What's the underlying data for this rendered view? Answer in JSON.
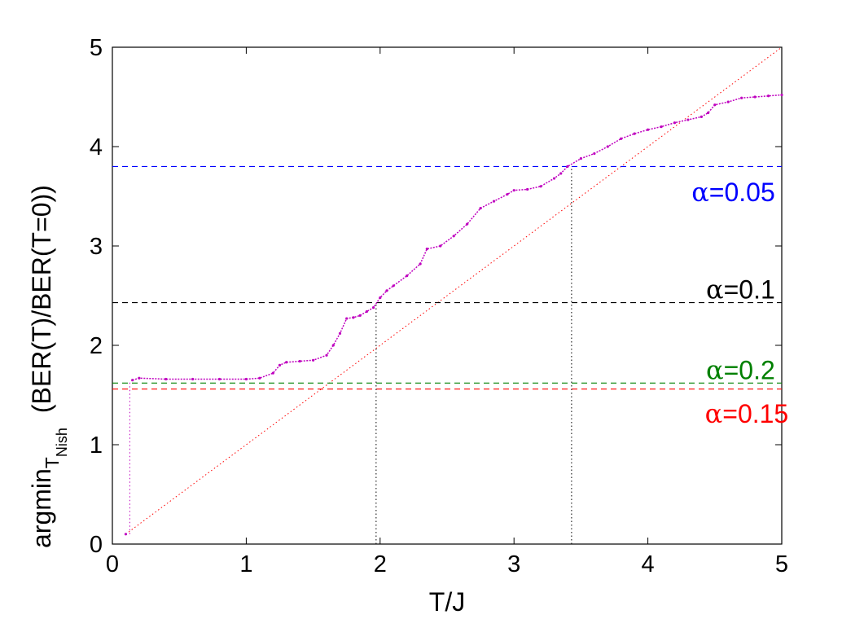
{
  "chart_data": {
    "type": "line",
    "title": "",
    "xlabel": "T/J",
    "ylabel_main": "argmin",
    "ylabel_sub1": "T",
    "ylabel_sub2": "Nish",
    "ylabel_rest": "(BER(T)/BER(T=0))",
    "xlim": [
      0,
      5
    ],
    "ylim": [
      0,
      5
    ],
    "xticks": [
      0,
      1,
      2,
      3,
      4,
      5
    ],
    "yticks": [
      0,
      1,
      2,
      3,
      4,
      5
    ],
    "xtick_labels": [
      "0",
      "1",
      "2",
      "3",
      "4",
      "5"
    ],
    "ytick_labels": [
      "0",
      "1",
      "2",
      "3",
      "4",
      "5"
    ],
    "grid": false,
    "colors": {
      "curve": "#bf00bf",
      "diagonal": "#ff0000",
      "alpha_005": "#0000ff",
      "alpha_01": "#000000",
      "alpha_02": "#008000",
      "alpha_015": "#ff0000",
      "vertical": "#000000"
    },
    "curve_points": [
      [
        0.1,
        0.1
      ],
      [
        0.15,
        1.65
      ],
      [
        0.2,
        1.67
      ],
      [
        0.4,
        1.66
      ],
      [
        0.6,
        1.66
      ],
      [
        0.8,
        1.66
      ],
      [
        1.0,
        1.66
      ],
      [
        1.1,
        1.67
      ],
      [
        1.2,
        1.72
      ],
      [
        1.25,
        1.8
      ],
      [
        1.3,
        1.83
      ],
      [
        1.4,
        1.84
      ],
      [
        1.5,
        1.85
      ],
      [
        1.6,
        1.9
      ],
      [
        1.65,
        2.0
      ],
      [
        1.7,
        2.12
      ],
      [
        1.75,
        2.27
      ],
      [
        1.8,
        2.28
      ],
      [
        1.85,
        2.3
      ],
      [
        1.9,
        2.34
      ],
      [
        1.95,
        2.38
      ],
      [
        2.0,
        2.48
      ],
      [
        2.05,
        2.55
      ],
      [
        2.1,
        2.6
      ],
      [
        2.2,
        2.7
      ],
      [
        2.3,
        2.82
      ],
      [
        2.35,
        2.97
      ],
      [
        2.45,
        3.0
      ],
      [
        2.55,
        3.1
      ],
      [
        2.65,
        3.22
      ],
      [
        2.75,
        3.38
      ],
      [
        2.85,
        3.45
      ],
      [
        2.95,
        3.52
      ],
      [
        3.0,
        3.56
      ],
      [
        3.1,
        3.57
      ],
      [
        3.2,
        3.6
      ],
      [
        3.3,
        3.68
      ],
      [
        3.35,
        3.73
      ],
      [
        3.4,
        3.8
      ],
      [
        3.5,
        3.88
      ],
      [
        3.6,
        3.93
      ],
      [
        3.7,
        4.0
      ],
      [
        3.8,
        4.08
      ],
      [
        3.9,
        4.13
      ],
      [
        4.0,
        4.17
      ],
      [
        4.1,
        4.2
      ],
      [
        4.2,
        4.24
      ],
      [
        4.3,
        4.27
      ],
      [
        4.4,
        4.3
      ],
      [
        4.45,
        4.34
      ],
      [
        4.5,
        4.42
      ],
      [
        4.6,
        4.45
      ],
      [
        4.7,
        4.49
      ],
      [
        4.8,
        4.5
      ],
      [
        4.9,
        4.51
      ],
      [
        5.0,
        4.52
      ]
    ],
    "diagonal": [
      [
        0.1,
        0.1
      ],
      [
        5.0,
        5.0
      ]
    ],
    "hlines": [
      {
        "key": "alpha_005",
        "y": 3.8
      },
      {
        "key": "alpha_01",
        "y": 2.43
      },
      {
        "key": "alpha_02",
        "y": 1.62
      },
      {
        "key": "alpha_015",
        "y": 1.56
      }
    ],
    "vlines": [
      {
        "x": 1.97,
        "y_top": 2.43
      },
      {
        "x": 3.43,
        "y_top": 3.8
      }
    ],
    "initial_vline": {
      "x": 0.13,
      "y_bottom": 0.1,
      "y_top": 1.65
    },
    "annotations": [
      {
        "key": "alpha_005",
        "greek": "α",
        "text": "=0.05",
        "x": 4.95,
        "y": 3.45,
        "anchor": "end"
      },
      {
        "key": "alpha_01",
        "greek": "α",
        "text": "=0.1",
        "x": 4.95,
        "y": 2.47,
        "anchor": "end"
      },
      {
        "key": "alpha_02",
        "greek": "α",
        "text": "=0.2",
        "x": 4.95,
        "y": 1.66,
        "anchor": "end"
      },
      {
        "key": "alpha_015",
        "greek": "α",
        "text": "=0.15",
        "x": 5.05,
        "y": 1.22,
        "anchor": "end"
      }
    ]
  }
}
